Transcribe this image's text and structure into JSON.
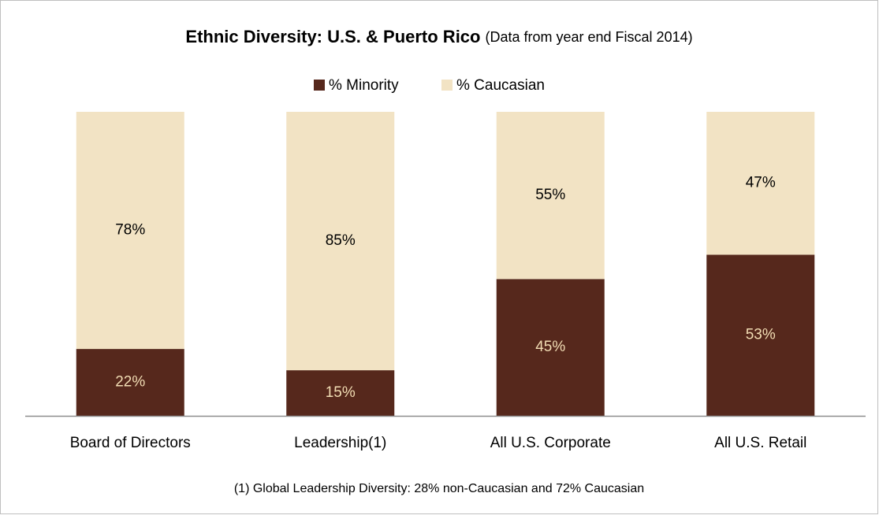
{
  "chart_data": {
    "type": "stacked_bar",
    "title": "Ethnic Diversity: U.S. & Puerto Rico",
    "subtitle": "(Data from year end Fiscal 2014)",
    "categories": [
      "Board of Directors",
      "Leadership(1)",
      "All U.S. Corporate",
      "All U.S. Retail"
    ],
    "series": [
      {
        "name": "% Minority",
        "color": "#56281c",
        "label_color": "#f2ddb4",
        "values": [
          22,
          15,
          45,
          53
        ],
        "value_labels": [
          "22%",
          "15%",
          "45%",
          "53%"
        ]
      },
      {
        "name": "% Caucasian",
        "color": "#f2e3c4",
        "label_color": "#000000",
        "values": [
          78,
          85,
          55,
          47
        ],
        "value_labels": [
          "78%",
          "85%",
          "55%",
          "47%"
        ]
      }
    ],
    "ylim": [
      0,
      100
    ],
    "legend": "top",
    "footnote": "(1) Global Leadership Diversity: 28% non-Caucasian and 72% Caucasian"
  }
}
